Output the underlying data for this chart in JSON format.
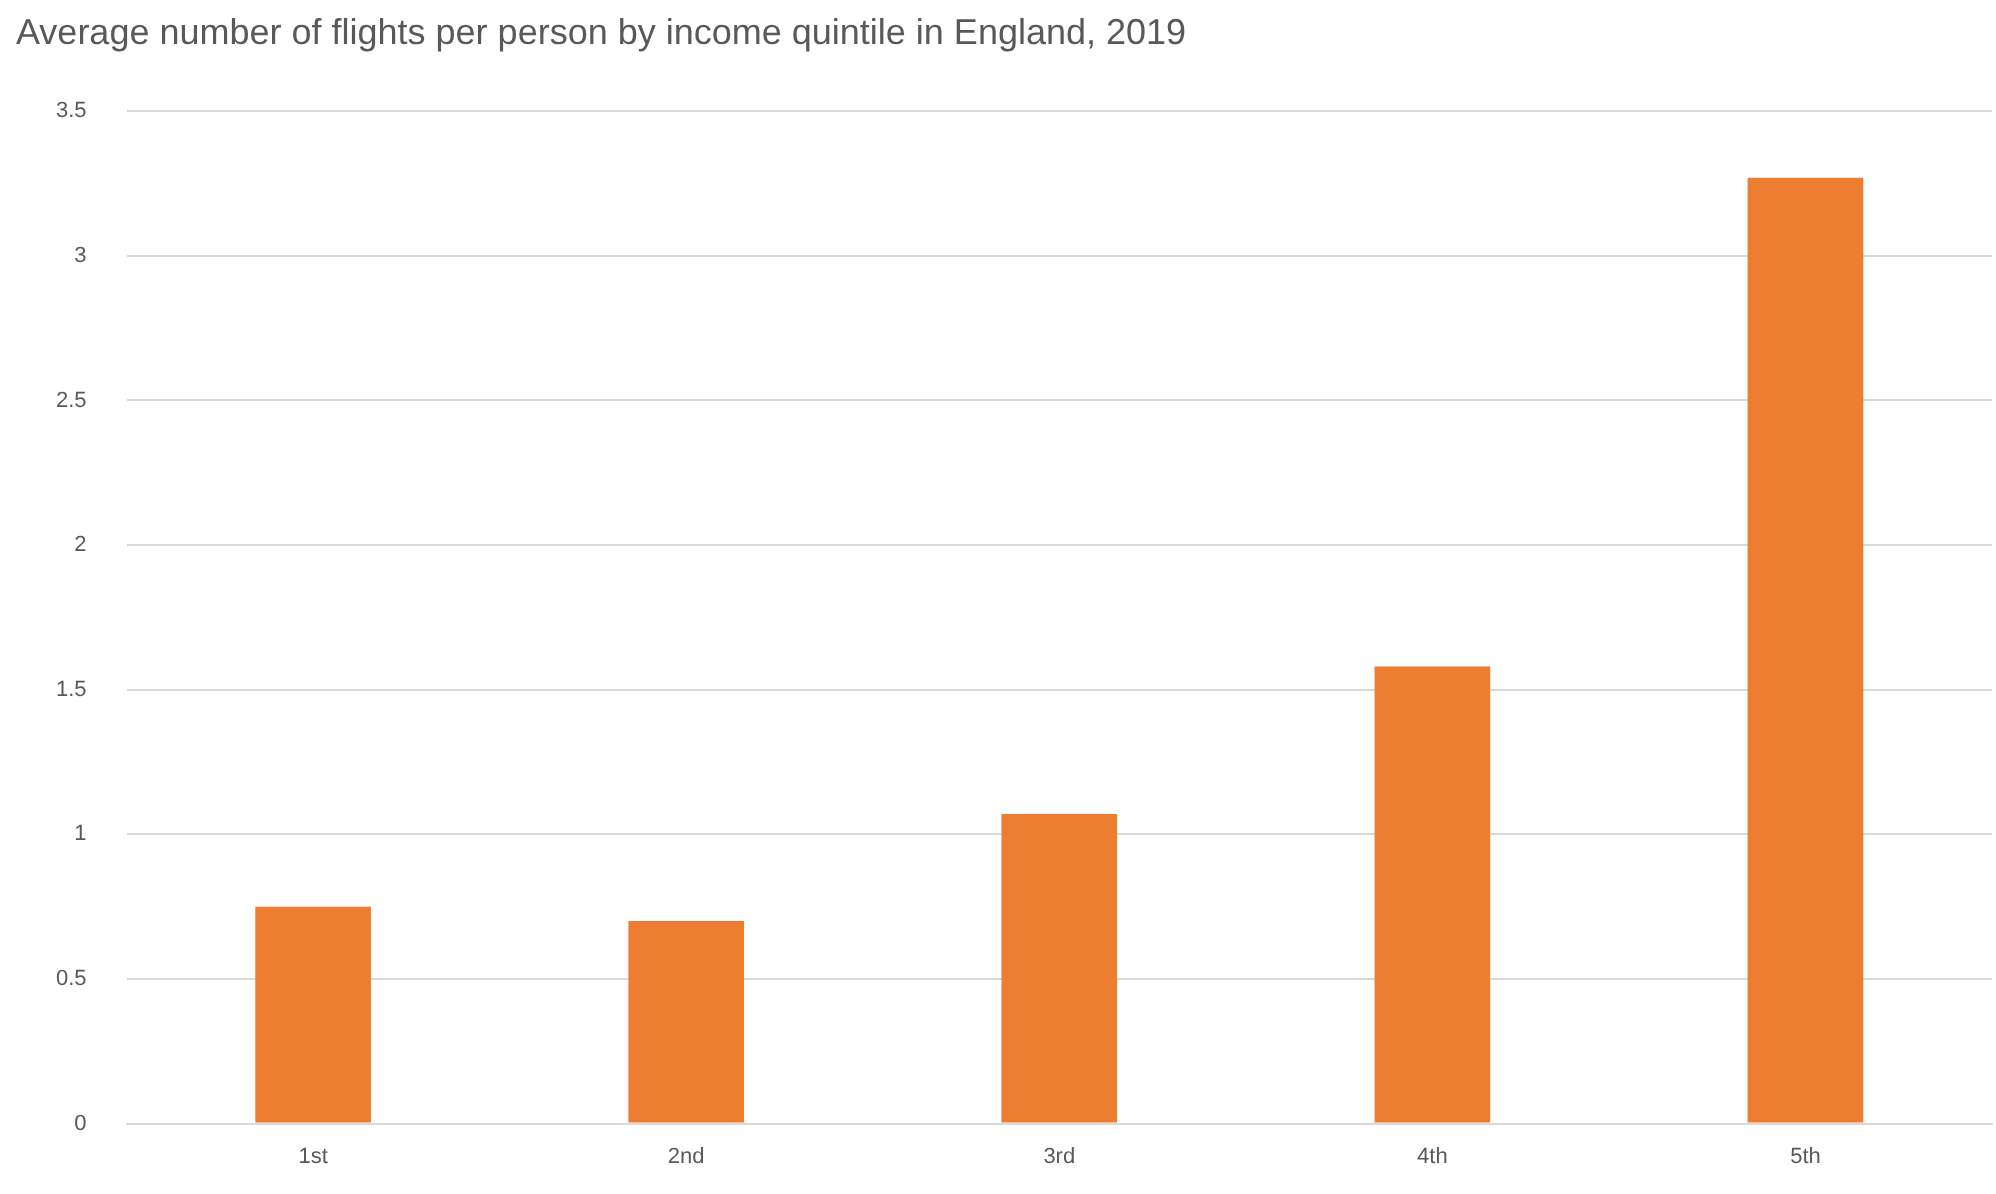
{
  "chart_data": {
    "type": "bar",
    "title": "Average number of flights per person by income quintile in England, 2019",
    "categories": [
      "1st",
      "2nd",
      "3rd",
      "4th",
      "5th"
    ],
    "values": [
      0.75,
      0.7,
      1.07,
      1.58,
      3.27
    ],
    "color": "#ed7d31",
    "ylim": [
      0,
      3.5
    ],
    "yticks": [
      0,
      0.5,
      1,
      1.5,
      2,
      2.5,
      3,
      3.5
    ],
    "grid": "y",
    "legend": false
  }
}
